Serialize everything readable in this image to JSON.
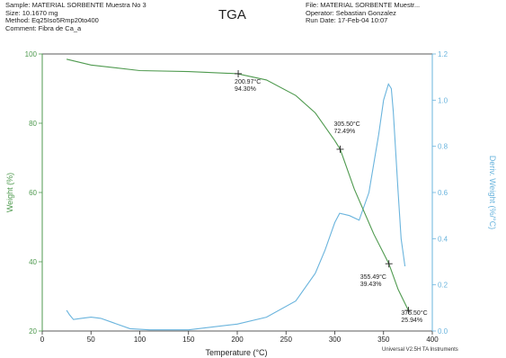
{
  "header": {
    "sample": "Sample: MATERIAL SORBENTE Muestra No 3",
    "size": "Size:  10.1670 mg",
    "method": "Method: Eq25Iso5Rmp20to400",
    "comment": "Comment: Fibra de Ca_a",
    "file": "File: MATERIAL SORBENTE Muestr...",
    "operator": "Operator: Sebastian Gonzalez",
    "run_date": "Run Date: 17-Feb-04 10:07"
  },
  "footer": "Universal V2.5H TA Instruments",
  "colors": {
    "weight": "#4f9a4f",
    "deriv": "#6ab4dd",
    "axis": "#333333"
  },
  "chart_data": {
    "type": "line",
    "title": "TGA",
    "xlabel": "Temperature (°C)",
    "ylabel": "Weight (%)",
    "y2label": "Deriv. Weight (%/°C)",
    "xlim": [
      0,
      400
    ],
    "ylim": [
      20,
      100
    ],
    "y2lim": [
      0,
      1.2
    ],
    "x_ticks": [
      "0",
      "50",
      "100",
      "150",
      "200",
      "250",
      "300",
      "350",
      "400"
    ],
    "y_ticks": [
      "20",
      "40",
      "60",
      "80",
      "100"
    ],
    "y2_ticks": [
      "0.0",
      "0.2",
      "0.4",
      "0.6",
      "0.8",
      "1.0",
      "1.2"
    ],
    "series": [
      {
        "axis": "left",
        "x": [
          25,
          50,
          100,
          150,
          200,
          230,
          260,
          280,
          300,
          305.5,
          320,
          340,
          355.49,
          365,
          375.5
        ],
        "y": [
          98.5,
          96.8,
          95.2,
          94.9,
          94.3,
          92.5,
          88.0,
          83.0,
          75.0,
          72.49,
          61.0,
          48.0,
          39.43,
          32.0,
          25.94
        ]
      },
      {
        "axis": "right",
        "x": [
          25,
          28,
          32,
          40,
          50,
          60,
          70,
          90,
          110,
          150,
          200,
          230,
          260,
          280,
          290,
          300,
          305,
          315,
          325,
          335,
          345,
          350,
          355,
          358,
          360,
          365,
          368,
          372
        ],
        "y": [
          0.09,
          0.07,
          0.05,
          0.055,
          0.06,
          0.055,
          0.04,
          0.01,
          0.005,
          0.005,
          0.03,
          0.06,
          0.13,
          0.25,
          0.35,
          0.47,
          0.51,
          0.5,
          0.48,
          0.6,
          0.85,
          1.0,
          1.07,
          1.05,
          0.95,
          0.6,
          0.4,
          0.28
        ]
      }
    ],
    "annotations": [
      {
        "x": 200.97,
        "y": 94.3,
        "line1": "200.97°C",
        "line2": "94.30%"
      },
      {
        "x": 305.5,
        "y": 72.49,
        "line1": "305.50°C",
        "line2": "72.49%"
      },
      {
        "x": 355.49,
        "y": 39.43,
        "line1": "355.49°C",
        "line2": "39.43%"
      },
      {
        "x": 375.5,
        "y": 25.94,
        "line1": "375.50°C",
        "line2": "25.94%"
      }
    ]
  }
}
